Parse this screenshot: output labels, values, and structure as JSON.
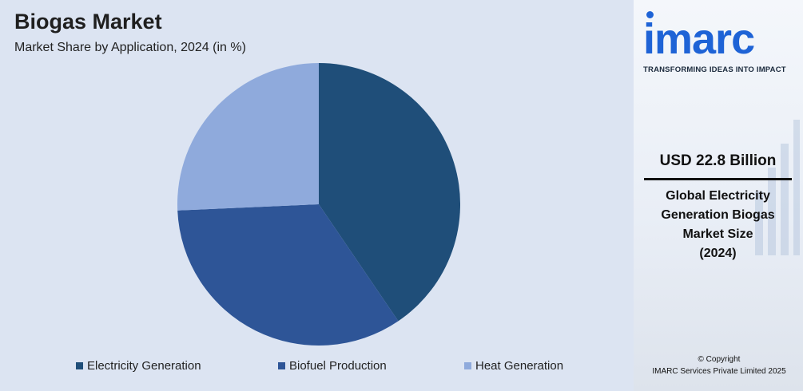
{
  "title": "Biogas Market",
  "subtitle": "Market Share by Application, 2024 (in %)",
  "chart_data": {
    "type": "pie",
    "categories": [
      "Electricity Generation",
      "Biofuel Production",
      "Heat Generation"
    ],
    "values": [
      40.5,
      33.8,
      25.7
    ],
    "colors": [
      "#1f4e79",
      "#2e5597",
      "#8faadc"
    ],
    "legend_position": "bottom",
    "start_angle": "12 o'clock",
    "direction": "clockwise"
  },
  "side": {
    "logo_text": "imarc",
    "tagline": "TRANSFORMING IDEAS INTO IMPACT",
    "market_value": "USD 22.8 Billion",
    "market_label_lines": [
      "Global Electricity",
      "Generation Biogas",
      "Market Size",
      "(2024)"
    ],
    "copyright_line1": "© Copyright",
    "copyright_line2": "IMARC Services Private Limited 2025"
  },
  "colors": {
    "panel_background": "#dce4f2",
    "brand_blue": "#1e63d6"
  }
}
